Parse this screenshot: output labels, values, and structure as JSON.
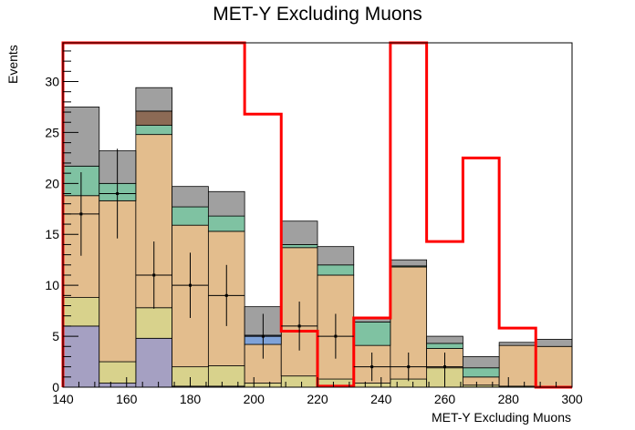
{
  "title": "MET-Y Excluding Muons",
  "chart_data": {
    "type": "histogram-stack",
    "title": "MET-Y Excluding Muons",
    "xlabel": "MET-Y Excluding Muons",
    "ylabel": "Events",
    "xlim": [
      140,
      300
    ],
    "ylim": [
      0,
      33.8
    ],
    "x_ticks": [
      140,
      160,
      180,
      200,
      220,
      240,
      260,
      280,
      300
    ],
    "y_ticks": [
      0,
      5,
      10,
      15,
      20,
      25,
      30
    ],
    "bin_edges": [
      140,
      151.4,
      162.9,
      174.3,
      185.7,
      197.1,
      208.6,
      220,
      231.4,
      242.9,
      254.3,
      265.7,
      277.1,
      288.6,
      300
    ],
    "stack": [
      {
        "color": "#a5a0c2",
        "values": [
          6.0,
          0.4,
          4.8,
          0.1,
          0.1,
          0.0,
          0.0,
          0.0,
          0.0,
          0.0,
          0.0,
          0.0,
          0.0,
          0.0
        ]
      },
      {
        "color": "#d8d28c",
        "values": [
          2.8,
          2.1,
          3.0,
          1.9,
          2.0,
          0.4,
          1.1,
          0.8,
          0.4,
          0.8,
          1.9,
          0.2,
          0.1,
          0.0
        ]
      },
      {
        "color": "#e3bd8d",
        "values": [
          10.0,
          15.8,
          17.0,
          13.9,
          13.2,
          3.8,
          12.6,
          10.2,
          3.7,
          11.0,
          1.9,
          0.8,
          4.0,
          4.0
        ]
      },
      {
        "color": "#7fa2d8",
        "values": [
          0.0,
          0.0,
          0.0,
          0.0,
          0.0,
          0.9,
          0.0,
          0.0,
          0.0,
          0.0,
          0.0,
          0.0,
          0.0,
          0.0
        ]
      },
      {
        "color": "#7fc2a2",
        "values": [
          2.9,
          1.7,
          0.9,
          1.8,
          1.5,
          0.0,
          0.3,
          1.0,
          2.3,
          0.1,
          0.5,
          0.9,
          0.0,
          0.0
        ]
      },
      {
        "color": "#8c6a55",
        "values": [
          0.0,
          0.0,
          1.4,
          0.0,
          0.0,
          0.0,
          0.0,
          0.0,
          0.0,
          0.0,
          0.0,
          0.0,
          0.0,
          0.0
        ]
      },
      {
        "color": "#a0a0a0",
        "values": [
          5.8,
          3.2,
          2.3,
          2.0,
          2.4,
          2.8,
          2.3,
          1.8,
          0.3,
          0.6,
          0.7,
          1.1,
          0.3,
          0.7
        ]
      }
    ],
    "signal": {
      "color": "#ff0000",
      "values": [
        null,
        null,
        null,
        null,
        null,
        26.8,
        5.5,
        0.1,
        6.8,
        null,
        14.3,
        22.5,
        5.8,
        0.0
      ]
    },
    "data_points": {
      "x": [
        145.7,
        157.1,
        168.6,
        180.0,
        191.4,
        202.9,
        214.3,
        225.7,
        237.1,
        248.6,
        260.0
      ],
      "y": [
        17.0,
        19.0,
        11.0,
        10.0,
        9.0,
        5.0,
        6.0,
        5.0,
        2.0,
        2.0,
        2.0
      ],
      "yerr": [
        4.1,
        4.4,
        3.3,
        3.2,
        3.0,
        2.2,
        2.4,
        2.2,
        1.4,
        1.4,
        1.4
      ]
    }
  }
}
